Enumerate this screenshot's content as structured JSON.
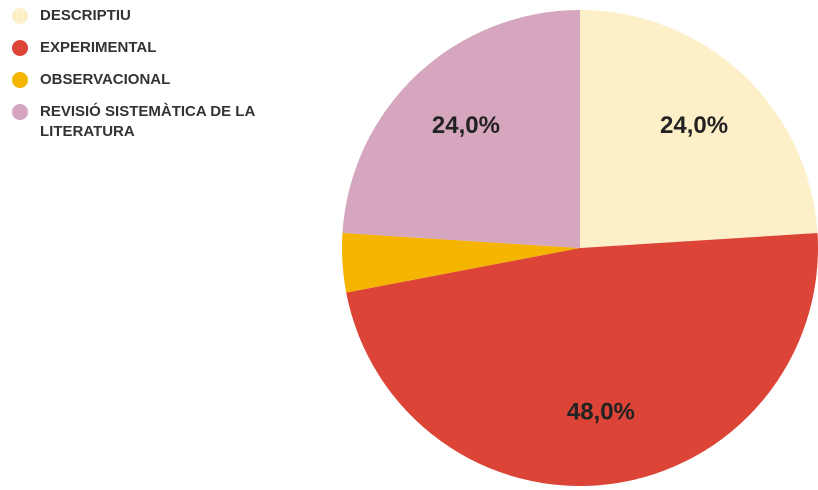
{
  "chart_data": {
    "type": "pie",
    "categories": [
      "DESCRIPTIU",
      "EXPERIMENTAL",
      "OBSERVACIONAL",
      "REVISIÓ SISTEMÀTICA DE LA LITERATURA"
    ],
    "values": [
      24,
      48,
      4,
      24
    ],
    "value_labels": [
      "24,0%",
      "48,0%",
      null,
      "24,0%"
    ],
    "colors": [
      "#fdefc8",
      "#db4437",
      "#f4b400",
      "#d5a6bd"
    ]
  }
}
